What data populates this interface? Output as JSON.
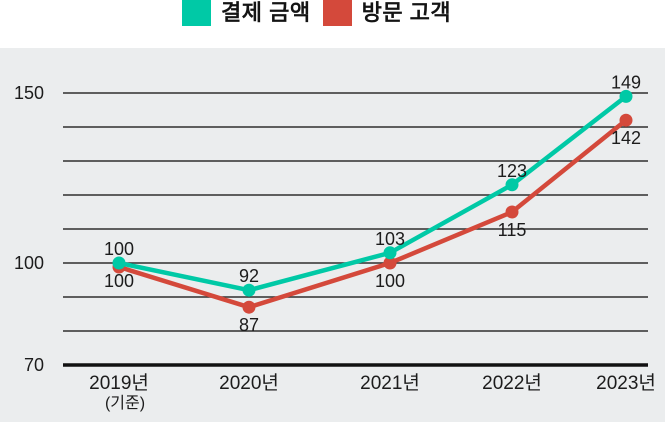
{
  "colors": {
    "teal": "#00c9a6",
    "red": "#d4493b",
    "panel": "#ebedee",
    "grid": "#2f2f2f",
    "axis": "#111111",
    "text": "#1c1c1c"
  },
  "legend": [
    {
      "label": "결제 금액",
      "color": "#00c9a6"
    },
    {
      "label": "방문 고객",
      "color": "#d4493b"
    }
  ],
  "chart_data": {
    "type": "line",
    "title": "",
    "categories": [
      "2019년",
      "2020년",
      "2021년",
      "2022년",
      "2023년"
    ],
    "x_axis_note": {
      "category_index": 0,
      "text": "(기준)"
    },
    "series": [
      {
        "name": "결제 금액",
        "color": "#00c9a6",
        "values": [
          100,
          92,
          103,
          123,
          149
        ],
        "label_position": "above"
      },
      {
        "name": "방문 고객",
        "color": "#d4493b",
        "values": [
          100,
          87,
          100,
          115,
          142
        ],
        "label_position": "below"
      }
    ],
    "y_ticks": [
      150,
      100,
      70
    ],
    "ylim": [
      70,
      150
    ],
    "grid_step": 10,
    "grid": true,
    "legend_position": "top-center",
    "point_labels_visible": true
  }
}
